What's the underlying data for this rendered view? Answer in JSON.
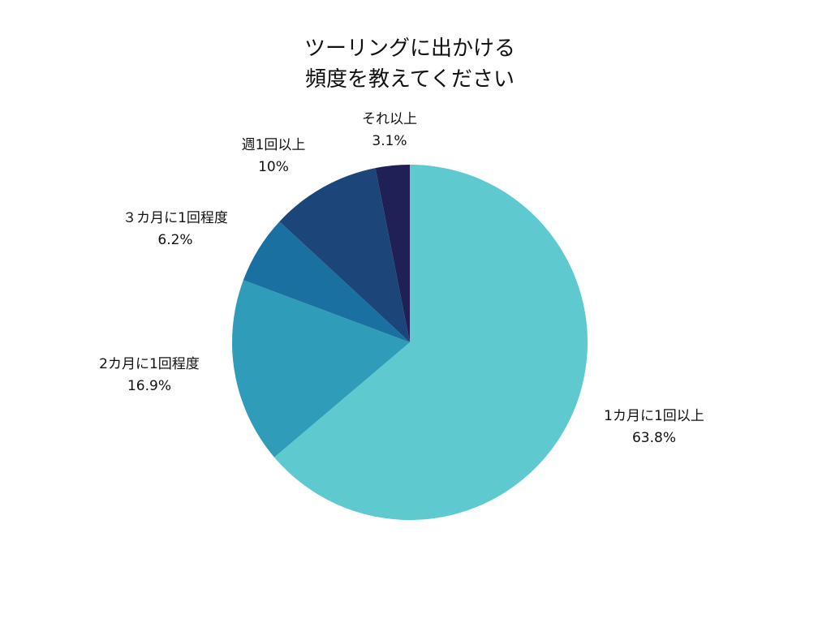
{
  "chart_data": {
    "type": "pie",
    "title_lines": [
      "ツーリングに出かける",
      "頻度を教えてください"
    ],
    "slices": [
      {
        "label": "1カ月に1回以上",
        "value": 63.8,
        "value_text": "63.8%",
        "color": "#5ecacf"
      },
      {
        "label": "2カ月に1回程度",
        "value": 16.9,
        "value_text": "16.9%",
        "color": "#2f9db9"
      },
      {
        "label": "３カ月に1回程度",
        "value": 6.2,
        "value_text": "6.2%",
        "color": "#1a70a0"
      },
      {
        "label": "週1回以上",
        "value": 10,
        "value_text": "10%",
        "color": "#1c4679"
      },
      {
        "label": "それ以上",
        "value": 3.1,
        "value_text": "3.1%",
        "color": "#1f2056"
      }
    ],
    "start": "top",
    "direction": "clockwise"
  }
}
